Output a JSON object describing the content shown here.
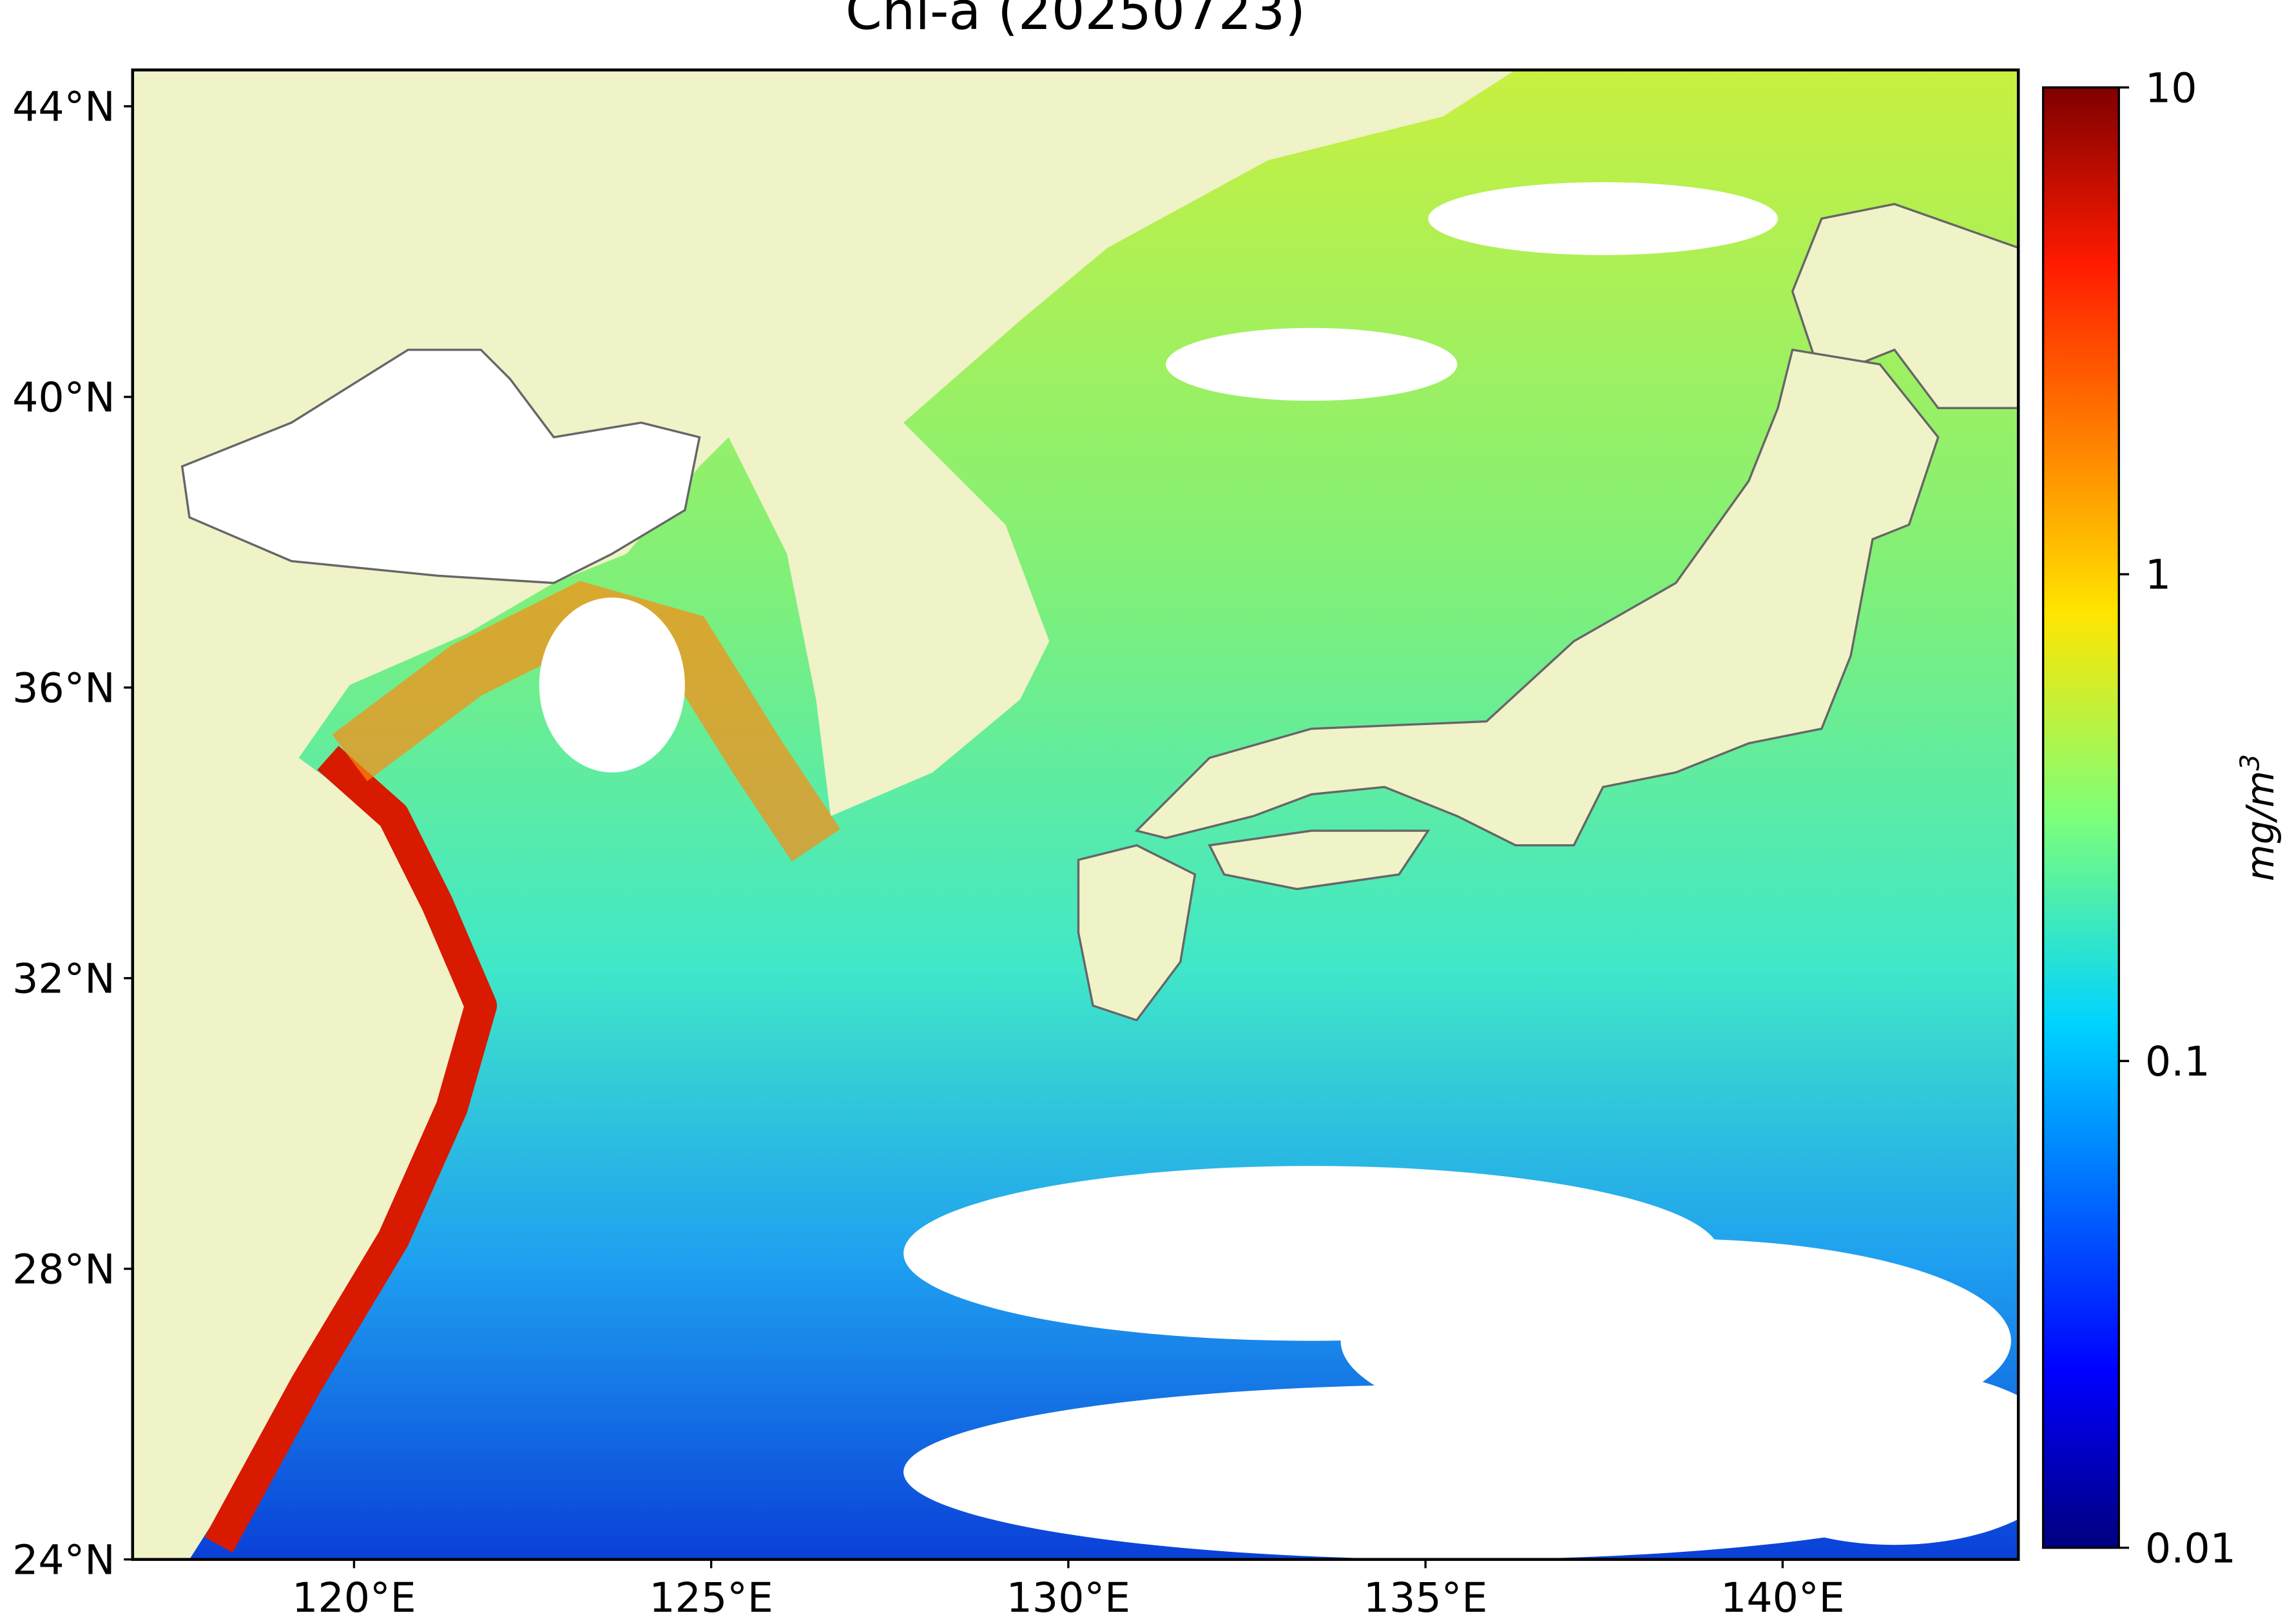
{
  "map": {
    "title": "Chl-a (20250723)",
    "lon_lim": [
      116.9,
      143.3
    ],
    "lat_lim": [
      24,
      44.5
    ],
    "lat_ticks": [
      {
        "value": 24,
        "label": "24°N"
      },
      {
        "value": 28,
        "label": "28°N"
      },
      {
        "value": 32,
        "label": "32°N"
      },
      {
        "value": 36,
        "label": "36°N"
      },
      {
        "value": 40,
        "label": "40°N"
      },
      {
        "value": 44,
        "label": "44°N"
      }
    ],
    "lon_ticks": [
      {
        "value": 120,
        "label": "120°E"
      },
      {
        "value": 125,
        "label": "125°E"
      },
      {
        "value": 130,
        "label": "130°E"
      },
      {
        "value": 135,
        "label": "135°E"
      },
      {
        "value": 140,
        "label": "140°E"
      }
    ],
    "colorbar": {
      "label": "mg/m",
      "label_superscript": "3",
      "scale": "log",
      "colormap": "jet",
      "lim": [
        0.01,
        10
      ],
      "ticks": [
        0.01,
        0.1,
        1,
        10
      ]
    }
  }
}
